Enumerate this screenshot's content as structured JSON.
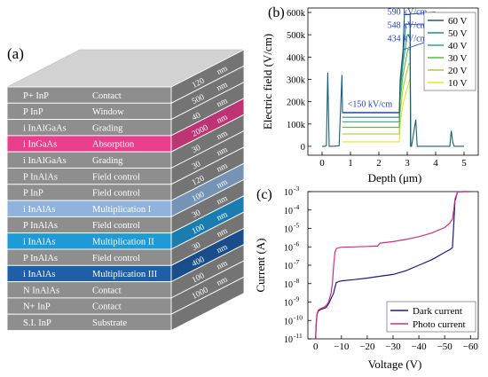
{
  "panels": {
    "a": {
      "tag": "(a)"
    },
    "b": {
      "tag": "(b)"
    },
    "c": {
      "tag": "(c)"
    }
  },
  "layer_stack": {
    "top_face_color": "#d2d2d2",
    "layers": [
      {
        "material": "P+ InP",
        "function": "Contact",
        "thickness": "120",
        "unit": "nm",
        "color": "#8e8e8e",
        "label_color": "#ffffff"
      },
      {
        "material": "P InP",
        "function": "Window",
        "thickness": "500",
        "unit": "nm",
        "color": "#8e8e8e",
        "label_color": "#ffffff"
      },
      {
        "material": "i InAlGaAs",
        "function": "Grading",
        "thickness": "40",
        "unit": "nm",
        "color": "#8e8e8e",
        "label_color": "#ffffff"
      },
      {
        "material": "i InGaAs",
        "function": "Absorption",
        "thickness": "2000",
        "unit": "nm",
        "color": "#e83e8c",
        "label_color": "#ffffff"
      },
      {
        "material": "i InAlGaAs",
        "function": "Grading",
        "thickness": "30",
        "unit": "nm",
        "color": "#8e8e8e",
        "label_color": "#ffffff"
      },
      {
        "material": "P InAlAs",
        "function": "Field control",
        "thickness": "30",
        "unit": "nm",
        "color": "#8e8e8e",
        "label_color": "#ffffff"
      },
      {
        "material": "P InP",
        "function": "Field control",
        "thickness": "120",
        "unit": "nm",
        "color": "#8e8e8e",
        "label_color": "#ffffff"
      },
      {
        "material": "i InAlAs",
        "function": "Multiplication I",
        "thickness": "100",
        "unit": "nm",
        "color": "#8fb3dc",
        "label_color": "#ffffff"
      },
      {
        "material": "P InAlAs",
        "function": "Field control",
        "thickness": "30",
        "unit": "nm",
        "color": "#8e8e8e",
        "label_color": "#ffffff"
      },
      {
        "material": "i InAlAs",
        "function": "Multiplication II",
        "thickness": "100",
        "unit": "nm",
        "color": "#1e9ad6",
        "label_color": "#ffffff"
      },
      {
        "material": "P InAlAs",
        "function": "Field control",
        "thickness": "30",
        "unit": "nm",
        "color": "#8e8e8e",
        "label_color": "#ffffff"
      },
      {
        "material": "i InAlAs",
        "function": "Multiplication III",
        "thickness": "400",
        "unit": "nm",
        "color": "#1f5fa8",
        "label_color": "#ffffff"
      },
      {
        "material": "N InAlAs",
        "function": "Contact",
        "thickness": "100",
        "unit": "nm",
        "color": "#8e8e8e",
        "label_color": "#ffffff"
      },
      {
        "material": "N+ InP",
        "function": "Contact",
        "thickness": "1000",
        "unit": "nm",
        "color": "#8e8e8e",
        "label_color": "#ffffff"
      },
      {
        "material": "S.I. InP",
        "function": "Substrate",
        "thickness": "",
        "unit": "",
        "color": "#8e8e8e",
        "label_color": "#ffffff"
      }
    ]
  },
  "chart_data": [
    {
      "panel": "b",
      "type": "line",
      "xlabel": "Depth (μm)",
      "ylabel": "Electric field (V/cm)",
      "xlim": [
        -0.5,
        5.5
      ],
      "ylim": [
        -40000,
        620000
      ],
      "xticks": [
        {
          "v": 0,
          "t": "0"
        },
        {
          "v": 1,
          "t": "1"
        },
        {
          "v": 2,
          "t": "2"
        },
        {
          "v": 3,
          "t": "3"
        },
        {
          "v": 4,
          "t": "4"
        },
        {
          "v": 5,
          "t": "5"
        }
      ],
      "yticks": [
        {
          "v": 0,
          "t": "0"
        },
        {
          "v": 100000,
          "t": "100k"
        },
        {
          "v": 200000,
          "t": "200k"
        },
        {
          "v": 300000,
          "t": "300k"
        },
        {
          "v": 400000,
          "t": "400k"
        },
        {
          "v": 500000,
          "t": "500k"
        },
        {
          "v": 600000,
          "t": "600k"
        }
      ],
      "legend_position": "top-right",
      "annotations": [
        {
          "text": "590 kV/cm",
          "x": 2.3,
          "y": 590000,
          "ax": 2.88,
          "ay": 590000,
          "color": "#1f3bd6"
        },
        {
          "text": "548 kV/cm",
          "x": 2.3,
          "y": 530000,
          "ax": 2.88,
          "ay": 548000,
          "color": "#1f3bd6"
        },
        {
          "text": "434 kV/cm",
          "x": 2.3,
          "y": 470000,
          "ax": 2.88,
          "ay": 434000,
          "color": "#1f3bd6"
        },
        {
          "text": "<150 kV/cm",
          "x": 0.9,
          "y": 160000,
          "ax": null,
          "ay": null,
          "color": "#1f3bd6"
        }
      ],
      "series": [
        {
          "name": "60 V",
          "color": "#1a5f73",
          "x": [
            0,
            0.1,
            0.15,
            0.2,
            0.25,
            0.35,
            0.6,
            0.7,
            0.72,
            0.75,
            2.72,
            2.75,
            2.85,
            2.9,
            3.05,
            3.1,
            3.12,
            3.15,
            3.3,
            3.35,
            3.4,
            3.45,
            4.5,
            4.55,
            4.6,
            4.65,
            5.0
          ],
          "y": [
            0,
            0,
            3000,
            330000,
            0,
            0,
            2000,
            320000,
            150000,
            150000,
            150000,
            300000,
            430000,
            590000,
            590000,
            590000,
            0,
            0,
            120000,
            0,
            0,
            0,
            0,
            70000,
            20000,
            0,
            0
          ]
        },
        {
          "name": "50 V",
          "color": "#2b8a8a",
          "x": [
            0.72,
            0.75,
            2.72,
            2.75,
            2.85,
            2.95,
            3.1,
            3.12
          ],
          "y": [
            130000,
            130000,
            130000,
            270000,
            400000,
            548000,
            548000,
            0
          ]
        },
        {
          "name": "40 V",
          "color": "#33a67a",
          "x": [
            0.72,
            0.75,
            2.72,
            2.75,
            2.85,
            3.0,
            3.1,
            3.12
          ],
          "y": [
            110000,
            110000,
            110000,
            240000,
            370000,
            500000,
            500000,
            0
          ]
        },
        {
          "name": "30 V",
          "color": "#55bd4a",
          "x": [
            0.72,
            0.75,
            2.72,
            2.75,
            2.85,
            3.02,
            3.1,
            3.12
          ],
          "y": [
            85000,
            85000,
            85000,
            200000,
            320000,
            434000,
            434000,
            0
          ]
        },
        {
          "name": "20 V",
          "color": "#a6d42c",
          "x": [
            0.72,
            0.75,
            2.72,
            2.75,
            2.85,
            3.05,
            3.1,
            3.12
          ],
          "y": [
            55000,
            55000,
            55000,
            150000,
            260000,
            370000,
            370000,
            0
          ]
        },
        {
          "name": "10 V",
          "color": "#e8e81a",
          "x": [
            0.72,
            0.75,
            2.72,
            2.75,
            2.85,
            3.08,
            3.1,
            3.12
          ],
          "y": [
            20000,
            20000,
            20000,
            100000,
            190000,
            300000,
            300000,
            0
          ]
        }
      ]
    },
    {
      "panel": "c",
      "type": "line",
      "scale_y": "log",
      "xlabel": "Voltage (V)",
      "ylabel": "Current (A)",
      "xlim": [
        3,
        -63
      ],
      "ylim": [
        -11,
        -3
      ],
      "xticks": [
        {
          "v": 0,
          "t": "0"
        },
        {
          "v": -10,
          "t": "−10"
        },
        {
          "v": -20,
          "t": "−20"
        },
        {
          "v": -30,
          "t": "−30"
        },
        {
          "v": -40,
          "t": "−40"
        },
        {
          "v": -50,
          "t": "−50"
        },
        {
          "v": -60,
          "t": "−60"
        }
      ],
      "yticks": [
        {
          "v": -11,
          "t": "10",
          "e": "-11"
        },
        {
          "v": -10,
          "t": "10",
          "e": "-10"
        },
        {
          "v": -9,
          "t": "10",
          "e": "-9"
        },
        {
          "v": -8,
          "t": "10",
          "e": "-8"
        },
        {
          "v": -7,
          "t": "10",
          "e": "-7"
        },
        {
          "v": -6,
          "t": "10",
          "e": "-6"
        },
        {
          "v": -5,
          "t": "10",
          "e": "-5"
        },
        {
          "v": -4,
          "t": "10",
          "e": "-4"
        },
        {
          "v": -3,
          "t": "10",
          "e": "-3"
        }
      ],
      "legend_position": "bottom-right",
      "series": [
        {
          "name": "Dark current",
          "color": "#1a1a8a",
          "x": [
            0,
            -0.2,
            -0.5,
            -1,
            -2,
            -3,
            -4,
            -5,
            -6,
            -7,
            -7.5,
            -8,
            -9,
            -10,
            -15,
            -20,
            -25,
            -30,
            -35,
            -40,
            -45,
            -50,
            -52,
            -53,
            -53.5,
            -54,
            -55,
            -57,
            -60
          ],
          "y": [
            -11,
            -10.3,
            -9.7,
            -9.5,
            -9.4,
            -9.35,
            -9.3,
            -9.1,
            -8.8,
            -8.5,
            -8.2,
            -7.95,
            -7.88,
            -7.85,
            -7.78,
            -7.7,
            -7.6,
            -7.5,
            -7.3,
            -7.0,
            -6.7,
            -6.3,
            -6.15,
            -6.05,
            -4.8,
            -3.5,
            -3.02,
            -3,
            -3
          ]
        },
        {
          "name": "Photo current",
          "color": "#d62c7a",
          "x": [
            0,
            -0.2,
            -0.5,
            -1,
            -2,
            -3,
            -4,
            -5,
            -6,
            -6.5,
            -7,
            -7.5,
            -8,
            -9,
            -10,
            -15,
            -20,
            -24,
            -25,
            -30,
            -35,
            -40,
            -45,
            -50,
            -52,
            -53,
            -53.5,
            -54,
            -55,
            -57,
            -60
          ],
          "y": [
            -11,
            -10.2,
            -9.7,
            -9.45,
            -9.35,
            -9.3,
            -9.2,
            -9.0,
            -8.5,
            -8.0,
            -7.0,
            -6.3,
            -6.1,
            -6.05,
            -6.02,
            -6.0,
            -5.98,
            -5.96,
            -5.8,
            -5.72,
            -5.6,
            -5.45,
            -5.25,
            -4.95,
            -4.7,
            -4.5,
            -4.0,
            -3.4,
            -3.02,
            -3,
            -3
          ]
        }
      ]
    }
  ]
}
